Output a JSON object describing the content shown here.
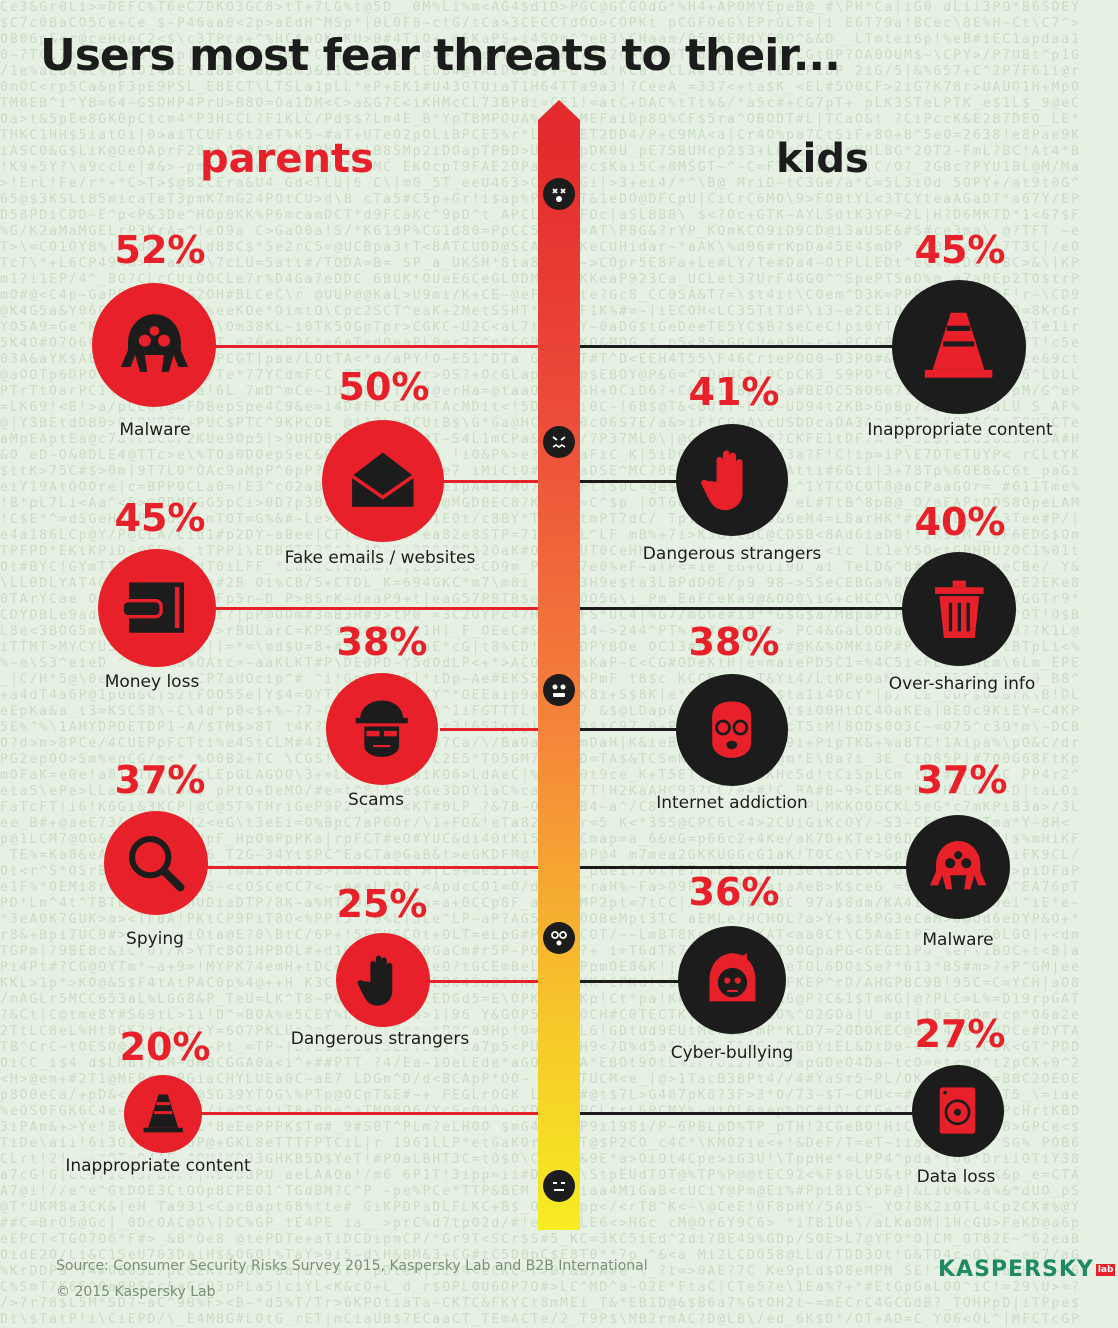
{
  "title": "Users most fear threats to their...",
  "columns": {
    "parents": "parents",
    "kids": "kids"
  },
  "colors": {
    "red": "#e8202a",
    "dark": "#1c1c1c",
    "background": "#e6f1e3",
    "brand_green": "#1f8a63"
  },
  "parents": [
    {
      "percent": "52%",
      "label": "Malware",
      "icon": "malware-bug-icon"
    },
    {
      "percent": "50%",
      "label": "Fake emails / websites",
      "icon": "open-envelope-icon"
    },
    {
      "percent": "45%",
      "label": "Money loss",
      "icon": "wallet-icon"
    },
    {
      "percent": "38%",
      "label": "Scams",
      "icon": "scammer-face-icon"
    },
    {
      "percent": "37%",
      "label": "Spying",
      "icon": "magnifier-icon"
    },
    {
      "percent": "25%",
      "label": "Dangerous strangers",
      "icon": "stop-hand-icon"
    },
    {
      "percent": "20%",
      "label": "Inappropriate content",
      "icon": "traffic-cone-icon"
    }
  ],
  "kids": [
    {
      "percent": "45%",
      "label": "Inappropriate content",
      "icon": "traffic-cone-icon"
    },
    {
      "percent": "41%",
      "label": "Dangerous strangers",
      "icon": "stop-hand-icon"
    },
    {
      "percent": "40%",
      "label": "Over-sharing info",
      "icon": "trash-bin-icon"
    },
    {
      "percent": "38%",
      "label": "Internet addiction",
      "icon": "addicted-face-icon"
    },
    {
      "percent": "37%",
      "label": "Malware",
      "icon": "malware-bug-icon"
    },
    {
      "percent": "36%",
      "label": "Cyber-bullying",
      "icon": "crying-girl-icon"
    },
    {
      "percent": "27%",
      "label": "Data loss",
      "icon": "hard-drive-icon"
    }
  ],
  "footer": {
    "source": "Source: Consumer Security Risks Survey 2015, Kaspersky Lab and B2B International",
    "copyright": "© 2015 Kaspersky Lab",
    "logo_text": "KASPERSKY",
    "logo_badge": "lab"
  }
}
